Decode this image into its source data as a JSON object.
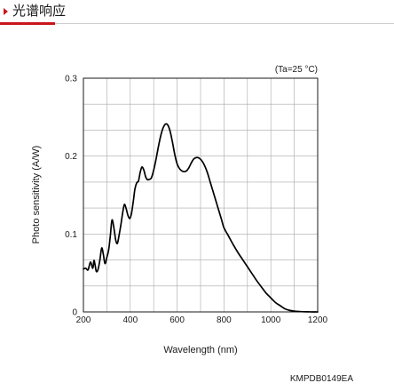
{
  "header": {
    "title": "光谱响应",
    "accent_color": "#c8161d"
  },
  "chart_data": {
    "type": "line",
    "title": "",
    "xlabel": "Wavelength (nm)",
    "ylabel": "Photo sensitivity (A/W)",
    "xlim": [
      200,
      1200
    ],
    "ylim": [
      0,
      0.3
    ],
    "x_ticks": [
      200,
      400,
      600,
      800,
      1000,
      1200
    ],
    "x_tick_labels": [
      "200",
      "400",
      "600",
      "800",
      "1000",
      "1200"
    ],
    "y_ticks": [
      0,
      0.1,
      0.2,
      0.3
    ],
    "y_tick_labels": [
      "0",
      "0.1",
      "0.2",
      "0.3"
    ],
    "grid": true,
    "condition": "(Ta=25 °C)",
    "code": "KMPDB0149EA",
    "series": [
      {
        "color": "#000000",
        "x": [
          200,
          210,
          220,
          230,
          240,
          245,
          250,
          255,
          262,
          270,
          278,
          285,
          292,
          300,
          308,
          315,
          322,
          330,
          338,
          345,
          352,
          360,
          368,
          375,
          383,
          390,
          398,
          405,
          413,
          420,
          428,
          435,
          443,
          450,
          458,
          465,
          472,
          480,
          490,
          500,
          510,
          520,
          530,
          540,
          550,
          560,
          570,
          580,
          590,
          600,
          610,
          620,
          630,
          640,
          650,
          660,
          670,
          680,
          690,
          700,
          710,
          720,
          730,
          740,
          750,
          760,
          770,
          780,
          790,
          800,
          820,
          840,
          860,
          880,
          900,
          920,
          940,
          960,
          980,
          1000,
          1020,
          1040,
          1060,
          1080,
          1100,
          1120,
          1140,
          1160,
          1180,
          1200
        ],
        "y": [
          0.055,
          0.056,
          0.054,
          0.064,
          0.056,
          0.066,
          0.06,
          0.052,
          0.054,
          0.066,
          0.082,
          0.074,
          0.062,
          0.07,
          0.08,
          0.098,
          0.118,
          0.108,
          0.092,
          0.088,
          0.098,
          0.112,
          0.128,
          0.138,
          0.132,
          0.124,
          0.12,
          0.126,
          0.142,
          0.158,
          0.166,
          0.168,
          0.18,
          0.186,
          0.182,
          0.174,
          0.17,
          0.17,
          0.172,
          0.182,
          0.196,
          0.212,
          0.226,
          0.236,
          0.241,
          0.24,
          0.232,
          0.218,
          0.202,
          0.19,
          0.184,
          0.181,
          0.18,
          0.181,
          0.185,
          0.191,
          0.196,
          0.198,
          0.198,
          0.196,
          0.192,
          0.186,
          0.178,
          0.168,
          0.158,
          0.148,
          0.138,
          0.128,
          0.118,
          0.108,
          0.097,
          0.086,
          0.076,
          0.067,
          0.058,
          0.049,
          0.04,
          0.032,
          0.024,
          0.018,
          0.012,
          0.008,
          0.004,
          0.002,
          0.001,
          0.0005,
          0.0002,
          0.0001,
          0,
          0
        ]
      }
    ]
  }
}
